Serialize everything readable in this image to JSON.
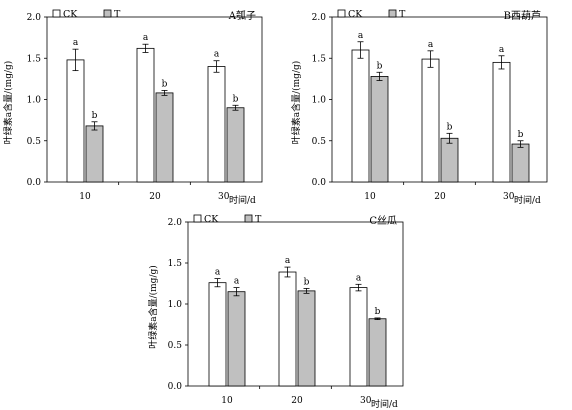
{
  "chart_data": [
    {
      "type": "bar",
      "title": "A瓠子",
      "categories": [
        "10",
        "20",
        "30"
      ],
      "xlabel_suffix": "时间/d",
      "ylabel": "叶绿素a含量/(mg/g)",
      "ylim": [
        0,
        2.0
      ],
      "yticks": [
        "0.0",
        "0.5",
        "1.0",
        "1.5",
        "2.0"
      ],
      "legend": [
        "CK",
        "T"
      ],
      "legend_position": "top-left",
      "series": [
        {
          "name": "CK",
          "color": "#ffffff",
          "values": [
            1.48,
            1.62,
            1.4
          ],
          "errors": [
            0.13,
            0.05,
            0.07
          ],
          "labels": [
            "a",
            "a",
            "a"
          ]
        },
        {
          "name": "T",
          "color": "#c0c0c0",
          "values": [
            0.68,
            1.08,
            0.9
          ],
          "errors": [
            0.05,
            0.03,
            0.03
          ],
          "labels": [
            "b",
            "b",
            "b"
          ]
        }
      ]
    },
    {
      "type": "bar",
      "title": "B西葫芦",
      "categories": [
        "10",
        "20",
        "30"
      ],
      "xlabel_suffix": "时间/d",
      "ylabel": "叶绿素a含量/(mg/g)",
      "ylim": [
        0,
        2.0
      ],
      "yticks": [
        "0.0",
        "0.5",
        "1.0",
        "1.5",
        "2.0"
      ],
      "legend": [
        "CK",
        "T"
      ],
      "legend_position": "top-left",
      "series": [
        {
          "name": "CK",
          "color": "#ffffff",
          "values": [
            1.6,
            1.49,
            1.45
          ],
          "errors": [
            0.1,
            0.1,
            0.08
          ],
          "labels": [
            "a",
            "a",
            "a"
          ]
        },
        {
          "name": "T",
          "color": "#c0c0c0",
          "values": [
            1.28,
            0.53,
            0.46
          ],
          "errors": [
            0.05,
            0.06,
            0.04
          ],
          "labels": [
            "b",
            "b",
            "b"
          ]
        }
      ]
    },
    {
      "type": "bar",
      "title": "C丝瓜",
      "categories": [
        "10",
        "20",
        "30"
      ],
      "xlabel_suffix": "时间/d",
      "ylabel": "叶绿素a含量/(mg/g)",
      "ylim": [
        0,
        2.0
      ],
      "yticks": [
        "0.0",
        "0.5",
        "1.0",
        "1.5",
        "2.0"
      ],
      "legend": [
        "CK",
        "T"
      ],
      "legend_position": "top-left",
      "series": [
        {
          "name": "CK",
          "color": "#ffffff",
          "values": [
            1.26,
            1.39,
            1.2
          ],
          "errors": [
            0.05,
            0.06,
            0.04
          ],
          "labels": [
            "a",
            "a",
            "a"
          ]
        },
        {
          "name": "T",
          "color": "#c0c0c0",
          "values": [
            1.15,
            1.16,
            0.82
          ],
          "errors": [
            0.05,
            0.03,
            0.01
          ],
          "labels": [
            "a",
            "b",
            "b"
          ]
        }
      ]
    }
  ]
}
